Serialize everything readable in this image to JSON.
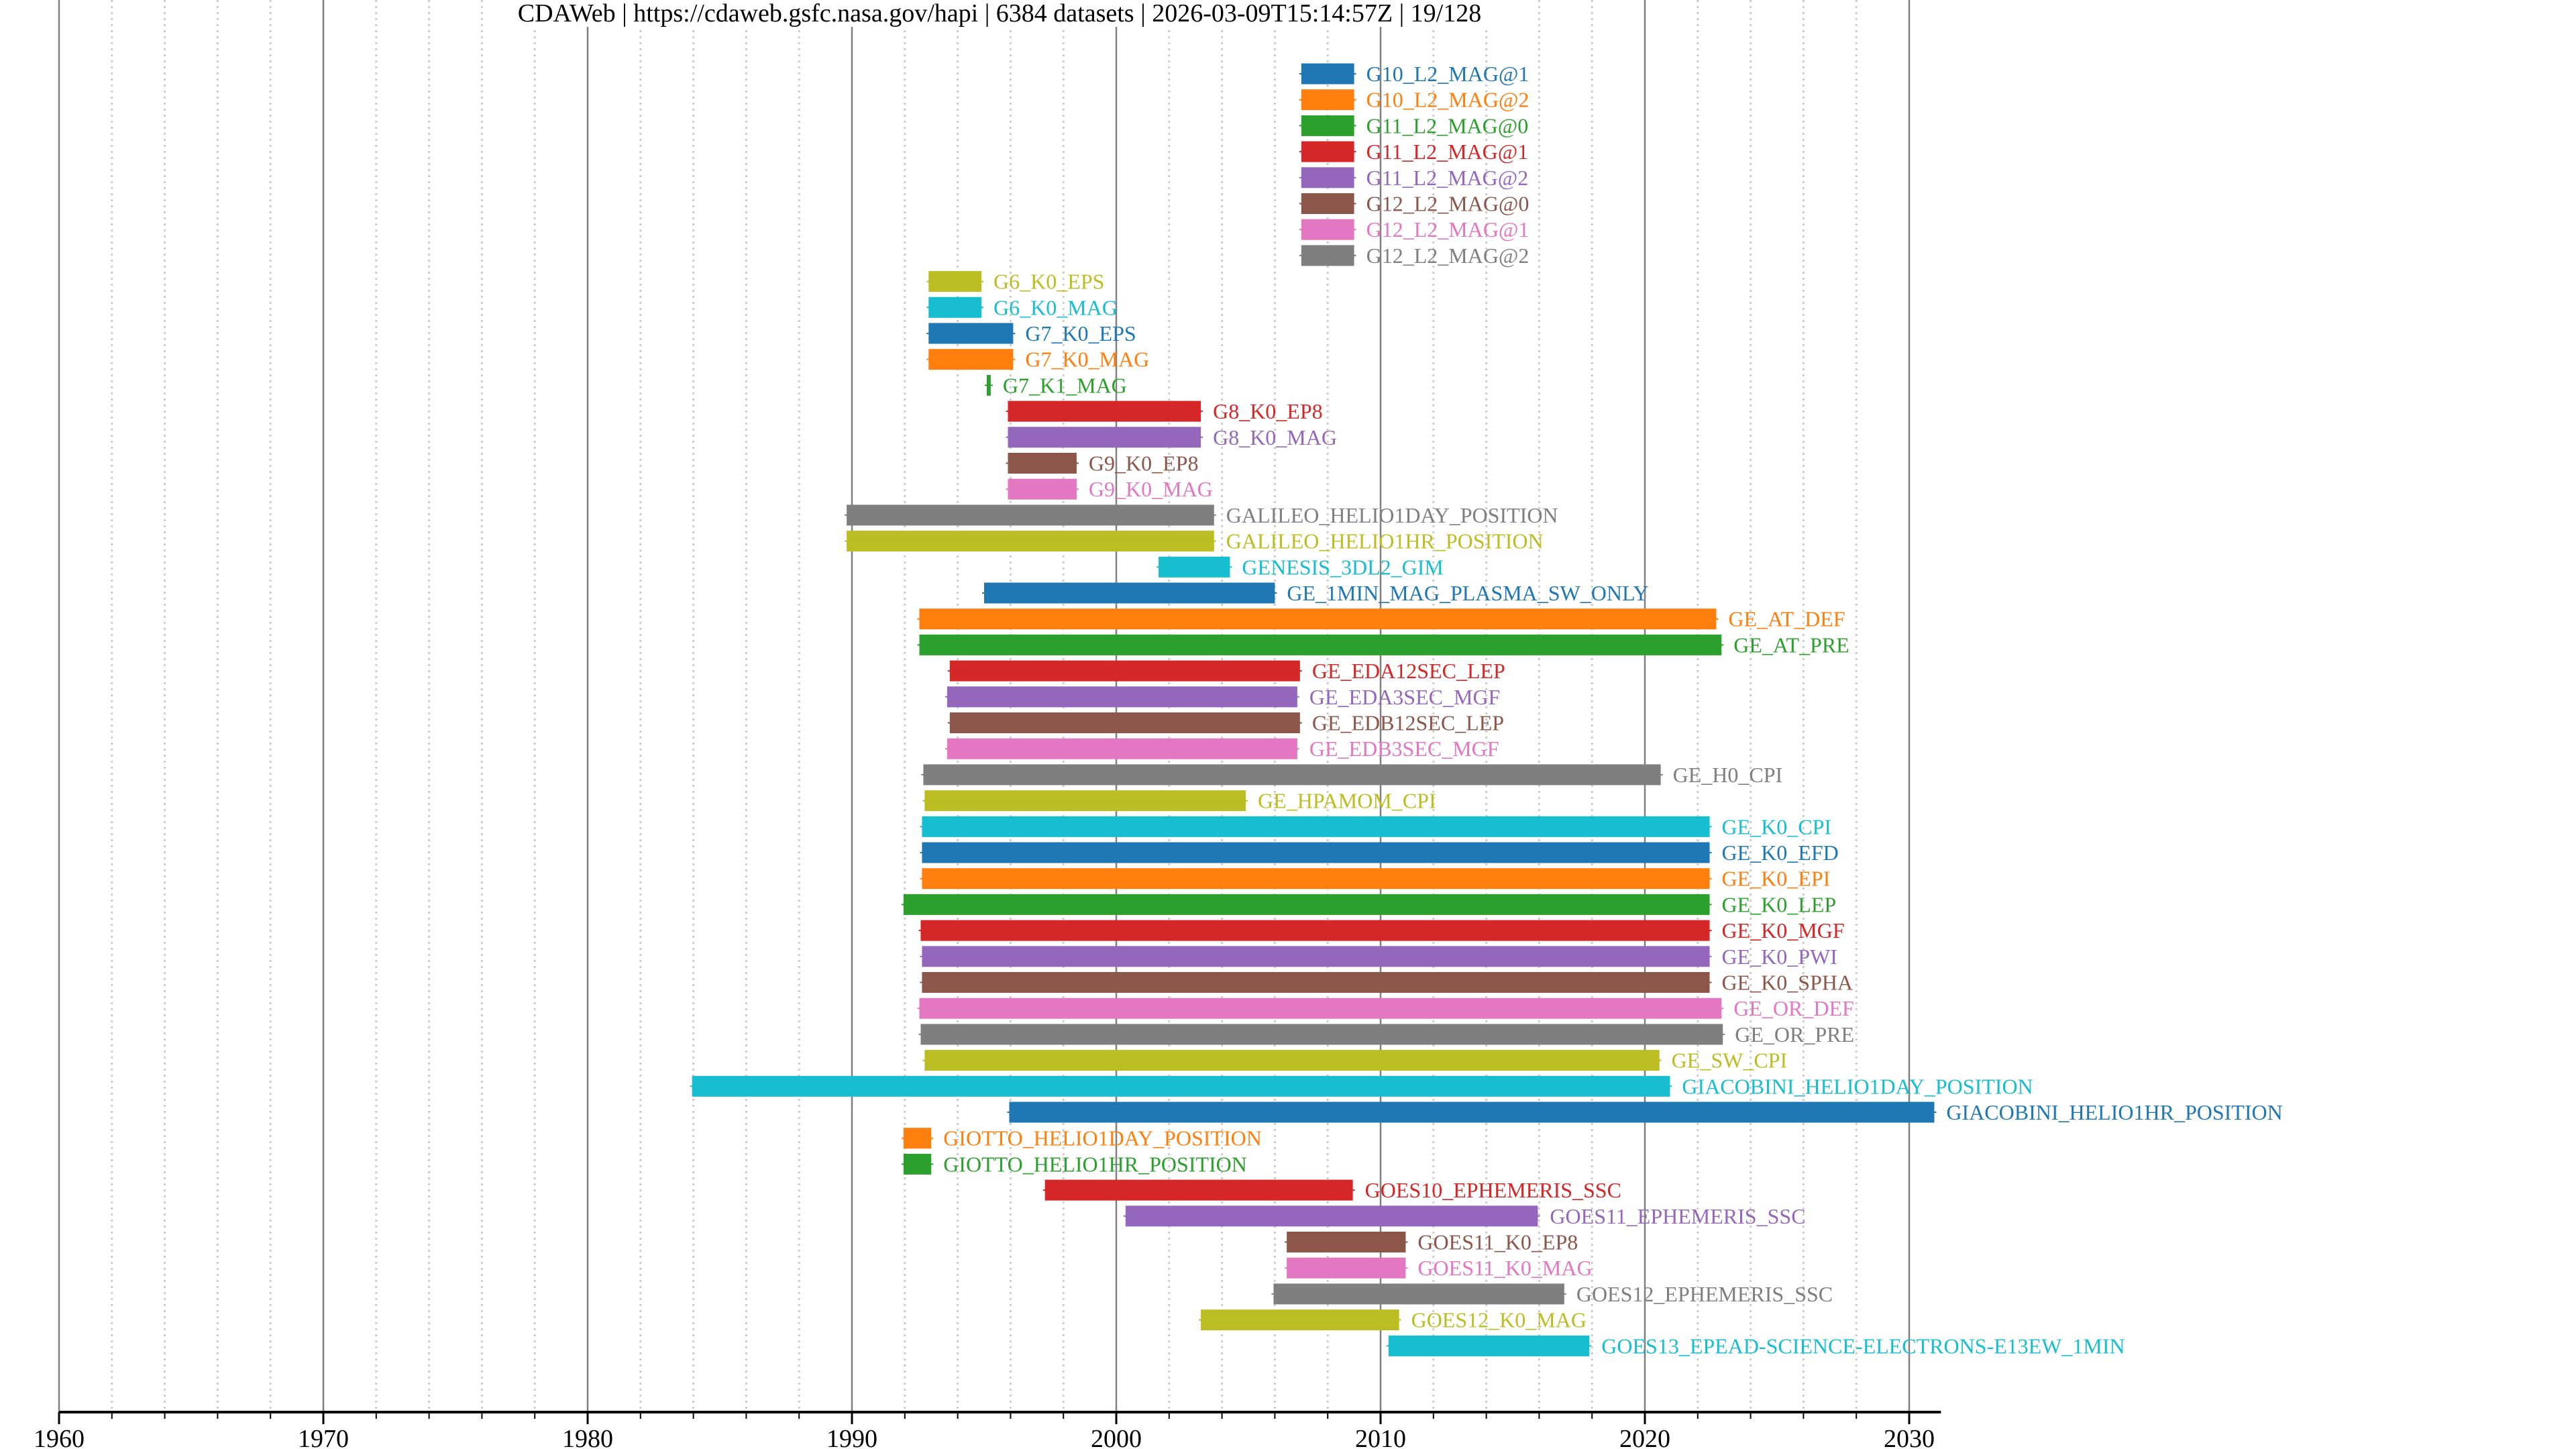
{
  "title": {
    "source": "CDAWeb",
    "url": "https://cdaweb.gsfc.nasa.gov/hapi",
    "dataset_count": "6384 datasets",
    "timestamp": "2026-03-09T15:14:57Z",
    "page": "19/128",
    "separator": " | "
  },
  "chart_data": {
    "type": "bar",
    "orientation": "horizontal-timeline",
    "title": "CDAWeb | https://cdaweb.gsfc.nasa.gov/hapi | 6384 datasets | 2026-03-09T15:14:57Z | 19/128",
    "xlabel": "",
    "ylabel": "",
    "xlim": [
      1960,
      2031.2
    ],
    "x_major_ticks": [
      1960,
      1970,
      1980,
      1990,
      2000,
      2010,
      2020,
      2030
    ],
    "x_minor_tick_step": 2,
    "grid": "major solid, minor dotted",
    "legend": "none (labels placed right of bars)",
    "palette": [
      "#1f77b4",
      "#ff7f0e",
      "#2ca02c",
      "#d62728",
      "#9467bd",
      "#8c564b",
      "#e377c2",
      "#7f7f7f",
      "#bcbd22",
      "#17becf"
    ],
    "series": [
      {
        "name": "G10_L2_MAG@1",
        "start": 2007.0,
        "end": 2009.0
      },
      {
        "name": "G10_L2_MAG@2",
        "start": 2007.0,
        "end": 2009.0
      },
      {
        "name": "G11_L2_MAG@0",
        "start": 2007.0,
        "end": 2009.0
      },
      {
        "name": "G11_L2_MAG@1",
        "start": 2007.0,
        "end": 2009.0
      },
      {
        "name": "G11_L2_MAG@2",
        "start": 2007.0,
        "end": 2009.0
      },
      {
        "name": "G12_L2_MAG@0",
        "start": 2007.0,
        "end": 2009.0
      },
      {
        "name": "G12_L2_MAG@1",
        "start": 2007.0,
        "end": 2009.0
      },
      {
        "name": "G12_L2_MAG@2",
        "start": 2007.0,
        "end": 2009.0
      },
      {
        "name": "G6_K0_EPS",
        "start": 1992.9,
        "end": 1994.9
      },
      {
        "name": "G6_K0_MAG",
        "start": 1992.9,
        "end": 1994.9
      },
      {
        "name": "G7_K0_EPS",
        "start": 1992.9,
        "end": 1996.1
      },
      {
        "name": "G7_K0_MAG",
        "start": 1992.9,
        "end": 1996.1
      },
      {
        "name": "G7_K1_MAG",
        "start": 1995.1,
        "end": 1995.25
      },
      {
        "name": "G8_K0_EP8",
        "start": 1995.9,
        "end": 2003.2
      },
      {
        "name": "G8_K0_MAG",
        "start": 1995.9,
        "end": 2003.2
      },
      {
        "name": "G9_K0_EP8",
        "start": 1995.9,
        "end": 1998.5
      },
      {
        "name": "G9_K0_MAG",
        "start": 1995.9,
        "end": 1998.5
      },
      {
        "name": "GALILEO_HELIO1DAY_POSITION",
        "start": 1989.8,
        "end": 2003.7
      },
      {
        "name": "GALILEO_HELIO1HR_POSITION",
        "start": 1989.8,
        "end": 2003.7
      },
      {
        "name": "GENESIS_3DL2_GIM",
        "start": 2001.6,
        "end": 2004.3
      },
      {
        "name": "GE_1MIN_MAG_PLASMA_SW_ONLY",
        "start": 1995.0,
        "end": 2006.0
      },
      {
        "name": "GE_AT_DEF",
        "start": 1992.55,
        "end": 2022.7
      },
      {
        "name": "GE_AT_PRE",
        "start": 1992.55,
        "end": 2022.9
      },
      {
        "name": "GE_EDA12SEC_LEP",
        "start": 1993.7,
        "end": 2006.95
      },
      {
        "name": "GE_EDA3SEC_MGF",
        "start": 1993.6,
        "end": 2006.85
      },
      {
        "name": "GE_EDB12SEC_LEP",
        "start": 1993.7,
        "end": 2006.95
      },
      {
        "name": "GE_EDB3SEC_MGF",
        "start": 1993.6,
        "end": 2006.85
      },
      {
        "name": "GE_H0_CPI",
        "start": 1992.7,
        "end": 2020.6
      },
      {
        "name": "GE_HPAMOM_CPI",
        "start": 1992.75,
        "end": 2004.9
      },
      {
        "name": "GE_K0_CPI",
        "start": 1992.65,
        "end": 2022.45
      },
      {
        "name": "GE_K0_EFD",
        "start": 1992.65,
        "end": 2022.45
      },
      {
        "name": "GE_K0_EPI",
        "start": 1992.65,
        "end": 2022.45
      },
      {
        "name": "GE_K0_LEP",
        "start": 1991.95,
        "end": 2022.45
      },
      {
        "name": "GE_K0_MGF",
        "start": 1992.6,
        "end": 2022.45
      },
      {
        "name": "GE_K0_PWI",
        "start": 1992.65,
        "end": 2022.45
      },
      {
        "name": "GE_K0_SPHA",
        "start": 1992.65,
        "end": 2022.45
      },
      {
        "name": "GE_OR_DEF",
        "start": 1992.55,
        "end": 2022.9
      },
      {
        "name": "GE_OR_PRE",
        "start": 1992.6,
        "end": 2022.95
      },
      {
        "name": "GE_SW_CPI",
        "start": 1992.75,
        "end": 2020.55
      },
      {
        "name": "GIACOBINI_HELIO1DAY_POSITION",
        "start": 1983.95,
        "end": 2020.95
      },
      {
        "name": "GIACOBINI_HELIO1HR_POSITION",
        "start": 1995.95,
        "end": 2030.95
      },
      {
        "name": "GIOTTO_HELIO1DAY_POSITION",
        "start": 1991.95,
        "end": 1993.0
      },
      {
        "name": "GIOTTO_HELIO1HR_POSITION",
        "start": 1991.95,
        "end": 1993.0
      },
      {
        "name": "GOES10_EPHEMERIS_SSC",
        "start": 1997.3,
        "end": 2008.95
      },
      {
        "name": "GOES11_EPHEMERIS_SSC",
        "start": 2000.35,
        "end": 2015.95
      },
      {
        "name": "GOES11_K0_EP8",
        "start": 2006.45,
        "end": 2010.95
      },
      {
        "name": "GOES11_K0_MAG",
        "start": 2006.45,
        "end": 2010.95
      },
      {
        "name": "GOES12_EPHEMERIS_SSC",
        "start": 2005.95,
        "end": 2016.95
      },
      {
        "name": "GOES12_K0_MAG",
        "start": 2003.2,
        "end": 2010.7
      },
      {
        "name": "GOES13_EPEAD-SCIENCE-ELECTRONS-E13EW_1MIN",
        "start": 2010.3,
        "end": 2017.9
      }
    ]
  }
}
